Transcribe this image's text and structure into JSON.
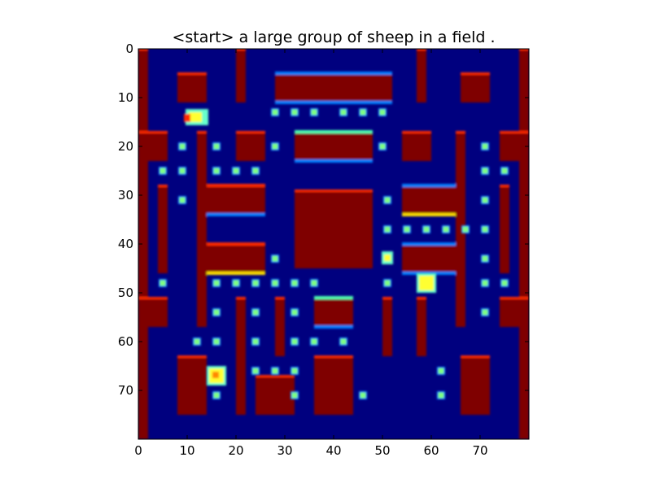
{
  "title": "<start> a large group of sheep in a field .",
  "axes": {
    "x_range": [
      0,
      80
    ],
    "y_range": [
      0,
      80
    ],
    "x_ticks": [
      {
        "value": 0,
        "label": "0"
      },
      {
        "value": 10,
        "label": "10"
      },
      {
        "value": 20,
        "label": "20"
      },
      {
        "value": 30,
        "label": "30"
      },
      {
        "value": 40,
        "label": "40"
      },
      {
        "value": 50,
        "label": "50"
      },
      {
        "value": 60,
        "label": "60"
      },
      {
        "value": 70,
        "label": "70"
      }
    ],
    "y_ticks": [
      {
        "value": 0,
        "label": "0"
      },
      {
        "value": 10,
        "label": "10"
      },
      {
        "value": 20,
        "label": "20"
      },
      {
        "value": 30,
        "label": "30"
      },
      {
        "value": 40,
        "label": "40"
      },
      {
        "value": 50,
        "label": "50"
      },
      {
        "value": 60,
        "label": "60"
      },
      {
        "value": 70,
        "label": "70"
      }
    ]
  },
  "colormap": "jet",
  "colors": {
    "background": "#00007f",
    "wall": "#7f0000",
    "wall_edge_red": "#ff2a00",
    "wall_edge_cyan": "#4dffb0",
    "wall_edge_blue": "#0080ff",
    "wall_edge_yellow": "#ffe000",
    "pellet": "#7fff7f",
    "sprite_yellow": "#ffff33",
    "sprite_cyan": "#66ffcc",
    "sprite_orange": "#ff8800"
  },
  "game": {
    "walls": [
      [
        0,
        0,
        2,
        80
      ],
      [
        78,
        0,
        2,
        80
      ],
      [
        8,
        5,
        6,
        6
      ],
      [
        66,
        5,
        6,
        6
      ],
      [
        20,
        0,
        2,
        11
      ],
      [
        57,
        0,
        2,
        11
      ],
      [
        28,
        5,
        24,
        6
      ],
      [
        0,
        17,
        6,
        6
      ],
      [
        74,
        17,
        6,
        6
      ],
      [
        20,
        17,
        6,
        6
      ],
      [
        32,
        17,
        16,
        6
      ],
      [
        54,
        17,
        6,
        6
      ],
      [
        4,
        28,
        2,
        18
      ],
      [
        74,
        28,
        2,
        18
      ],
      [
        14,
        28,
        12,
        6
      ],
      [
        54,
        28,
        12,
        6
      ],
      [
        32,
        29,
        16,
        16
      ],
      [
        12,
        40,
        14,
        6
      ],
      [
        54,
        40,
        12,
        6
      ],
      [
        0,
        51,
        6,
        6
      ],
      [
        74,
        51,
        6,
        6
      ],
      [
        20,
        51,
        2,
        24
      ],
      [
        36,
        51,
        8,
        6
      ],
      [
        50,
        51,
        2,
        12
      ],
      [
        57,
        51,
        2,
        12
      ],
      [
        65,
        17,
        2,
        40
      ],
      [
        12,
        17,
        2,
        40
      ],
      [
        8,
        63,
        6,
        12
      ],
      [
        66,
        63,
        6,
        12
      ],
      [
        24,
        67,
        8,
        8
      ],
      [
        36,
        63,
        8,
        12
      ],
      [
        28,
        51,
        2,
        12
      ]
    ],
    "pellets": [
      [
        28,
        13
      ],
      [
        32,
        13
      ],
      [
        36,
        13
      ],
      [
        42,
        13
      ],
      [
        46,
        13
      ],
      [
        50,
        13
      ],
      [
        9,
        20
      ],
      [
        16,
        20
      ],
      [
        28,
        20
      ],
      [
        50,
        20
      ],
      [
        71,
        20
      ],
      [
        5,
        25
      ],
      [
        9,
        25
      ],
      [
        16,
        25
      ],
      [
        20,
        25
      ],
      [
        24,
        25
      ],
      [
        71,
        25
      ],
      [
        75,
        25
      ],
      [
        9,
        31
      ],
      [
        51,
        31
      ],
      [
        71,
        31
      ],
      [
        51,
        37
      ],
      [
        55,
        37
      ],
      [
        59,
        37
      ],
      [
        63,
        37
      ],
      [
        67,
        37
      ],
      [
        71,
        37
      ],
      [
        28,
        43
      ],
      [
        71,
        43
      ],
      [
        5,
        48
      ],
      [
        16,
        48
      ],
      [
        20,
        48
      ],
      [
        24,
        48
      ],
      [
        28,
        48
      ],
      [
        32,
        48
      ],
      [
        36,
        48
      ],
      [
        51,
        48
      ],
      [
        71,
        48
      ],
      [
        75,
        48
      ],
      [
        16,
        54
      ],
      [
        24,
        54
      ],
      [
        32,
        54
      ],
      [
        71,
        54
      ],
      [
        12,
        60
      ],
      [
        16,
        60
      ],
      [
        24,
        60
      ],
      [
        32,
        60
      ],
      [
        36,
        60
      ],
      [
        42,
        60
      ],
      [
        24,
        66
      ],
      [
        28,
        66
      ],
      [
        32,
        66
      ],
      [
        62,
        66
      ],
      [
        16,
        71
      ],
      [
        32,
        71
      ],
      [
        46,
        71
      ],
      [
        62,
        71
      ]
    ],
    "sprites": [
      {
        "kind": "player-ship",
        "x": 12,
        "y": 14
      },
      {
        "kind": "ghost-right",
        "x": 51,
        "y": 43
      },
      {
        "kind": "ghost-center",
        "x": 59,
        "y": 48
      },
      {
        "kind": "ghost-bottom",
        "x": 16,
        "y": 67
      }
    ]
  }
}
